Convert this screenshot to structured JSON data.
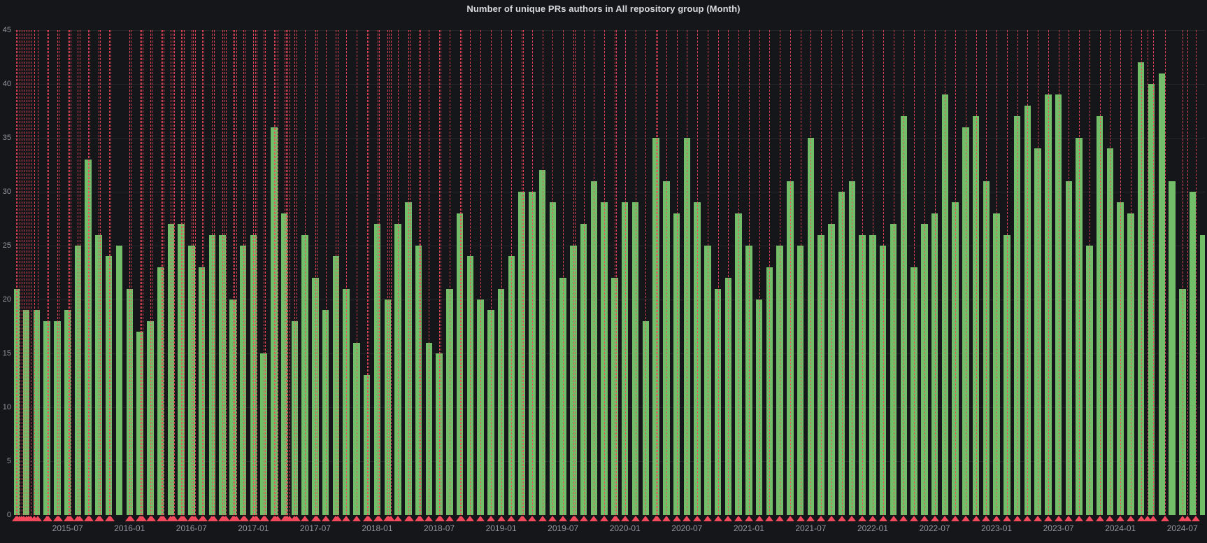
{
  "panel": {
    "title": "Number of unique PRs authors in All repository group (Month)"
  },
  "chart_data": {
    "type": "bar",
    "title": "Number of unique PRs authors in All repository group (Month)",
    "xlabel": "",
    "ylabel": "",
    "ylim": [
      0,
      45
    ],
    "y_ticks": [
      0,
      5,
      10,
      15,
      20,
      25,
      30,
      35,
      40,
      45
    ],
    "x_tick_labels": [
      "2015-07",
      "2016-01",
      "2016-07",
      "2017-01",
      "2017-07",
      "2018-01",
      "2018-07",
      "2019-01",
      "2019-07",
      "2020-01",
      "2020-07",
      "2021-01",
      "2021-07",
      "2022-01",
      "2022-07",
      "2023-01",
      "2023-07",
      "2024-01",
      "2024-07"
    ],
    "grid": true,
    "legend_position": "none",
    "categories": [
      "2015-02",
      "2015-03",
      "2015-04",
      "2015-05",
      "2015-06",
      "2015-07",
      "2015-08",
      "2015-09",
      "2015-10",
      "2015-11",
      "2015-12",
      "2016-01",
      "2016-02",
      "2016-03",
      "2016-04",
      "2016-05",
      "2016-06",
      "2016-07",
      "2016-08",
      "2016-09",
      "2016-10",
      "2016-11",
      "2016-12",
      "2017-01",
      "2017-02",
      "2017-03",
      "2017-04",
      "2017-05",
      "2017-06",
      "2017-07",
      "2017-08",
      "2017-09",
      "2017-10",
      "2017-11",
      "2017-12",
      "2018-01",
      "2018-02",
      "2018-03",
      "2018-04",
      "2018-05",
      "2018-06",
      "2018-07",
      "2018-08",
      "2018-09",
      "2018-10",
      "2018-11",
      "2018-12",
      "2019-01",
      "2019-02",
      "2019-03",
      "2019-04",
      "2019-05",
      "2019-06",
      "2019-07",
      "2019-08",
      "2019-09",
      "2019-10",
      "2019-11",
      "2019-12",
      "2020-01",
      "2020-02",
      "2020-03",
      "2020-04",
      "2020-05",
      "2020-06",
      "2020-07",
      "2020-08",
      "2020-09",
      "2020-10",
      "2020-11",
      "2020-12",
      "2021-01",
      "2021-02",
      "2021-03",
      "2021-04",
      "2021-05",
      "2021-06",
      "2021-07",
      "2021-08",
      "2021-09",
      "2021-10",
      "2021-11",
      "2021-12",
      "2022-01",
      "2022-02",
      "2022-03",
      "2022-04",
      "2022-05",
      "2022-06",
      "2022-07",
      "2022-08",
      "2022-09",
      "2022-10",
      "2022-11",
      "2022-12",
      "2023-01",
      "2023-02",
      "2023-03",
      "2023-04",
      "2023-05",
      "2023-06",
      "2023-07",
      "2023-08",
      "2023-09",
      "2023-10",
      "2023-11",
      "2023-12",
      "2024-01",
      "2024-02",
      "2024-03",
      "2024-04",
      "2024-05",
      "2024-06",
      "2024-07",
      "2024-08",
      "2024-09"
    ],
    "values": [
      21,
      19,
      19,
      18,
      18,
      19,
      25,
      33,
      26,
      24,
      25,
      21,
      17,
      18,
      23,
      27,
      27,
      25,
      23,
      26,
      26,
      20,
      25,
      26,
      15,
      36,
      28,
      18,
      26,
      22,
      19,
      24,
      21,
      16,
      13,
      27,
      20,
      27,
      29,
      25,
      16,
      15,
      21,
      28,
      24,
      20,
      19,
      21,
      24,
      30,
      30,
      32,
      29,
      22,
      25,
      27,
      31,
      29,
      22,
      29,
      29,
      18,
      35,
      31,
      28,
      35,
      29,
      25,
      21,
      22,
      28,
      25,
      20,
      23,
      25,
      31,
      25,
      35,
      26,
      27,
      30,
      31,
      26,
      26,
      25,
      27,
      37,
      23,
      27,
      28,
      39,
      29,
      36,
      37,
      31,
      28,
      26,
      37,
      38,
      34,
      39,
      39,
      31,
      35,
      25,
      37,
      34,
      29,
      28,
      42,
      40,
      41,
      31,
      21,
      30,
      26
    ],
    "annotations_month_idx": [
      -0.2,
      0.0,
      0.15,
      0.35,
      0.55,
      0.75,
      1.0,
      1.2,
      1.45,
      1.8,
      2.1,
      3.0,
      3.15,
      4.0,
      4.15,
      5.0,
      5.15,
      5.3,
      6.0,
      6.15,
      7.0,
      7.15,
      8.0,
      8.15,
      9.0,
      9.15,
      11.0,
      11.15,
      12.0,
      12.15,
      12.3,
      13.0,
      13.15,
      14.0,
      14.15,
      14.3,
      15.0,
      15.15,
      15.35,
      16.0,
      16.15,
      16.3,
      17.0,
      17.15,
      17.35,
      18.0,
      18.15,
      19.0,
      19.15,
      20.0,
      20.15,
      20.3,
      21.0,
      21.15,
      21.35,
      22.0,
      22.15,
      23.0,
      23.15,
      23.3,
      24.0,
      24.15,
      25.0,
      25.15,
      25.35,
      26.0,
      26.15,
      26.3,
      26.5,
      27.0,
      27.15,
      28.0,
      29.0,
      29.15,
      30.0,
      31.0,
      31.15,
      32.0,
      33.0,
      34.0,
      34.15,
      35.0,
      35.15,
      36.0,
      36.15,
      36.3,
      37.0,
      38.0,
      38.15,
      39.0,
      39.15,
      40.0,
      41.0,
      41.15,
      42.0,
      43.0,
      43.15,
      44.0,
      45.0,
      46.0,
      47.0,
      48.0,
      49.0,
      49.15,
      50.0,
      51.0,
      52.0,
      53.0,
      54.0,
      54.15,
      55.0,
      56.0,
      57.0,
      58.0,
      58.15,
      59.0,
      60.0,
      61.0,
      62.0,
      62.15,
      63.0,
      64.0,
      65.0,
      66.0,
      67.0,
      68.0,
      69.0,
      70.0,
      71.0,
      72.0,
      73.0,
      74.0,
      75.0,
      76.0,
      77.0,
      78.0,
      79.0,
      80.0,
      81.0,
      82.0,
      83.0,
      84.0,
      85.0,
      86.0,
      87.0,
      88.0,
      89.0,
      90.0,
      91.0,
      92.0,
      93.0,
      94.0,
      95.0,
      96.0,
      97.0,
      98.0,
      99.0,
      100.0,
      101.0,
      102.0,
      103.0,
      104.0,
      105.0,
      106.0,
      107.0,
      108.0,
      109.0,
      109.6,
      110.2,
      111.3,
      113.0,
      113.5,
      114.3
    ],
    "colors": {
      "bar": "#73BF69",
      "annotation": "#F2495C",
      "grid": "rgba(204,204,220,0.08)",
      "background": "#141619",
      "tick_text": "rgba(204,204,220,0.70)",
      "title_text": "#D8D9DA"
    }
  }
}
